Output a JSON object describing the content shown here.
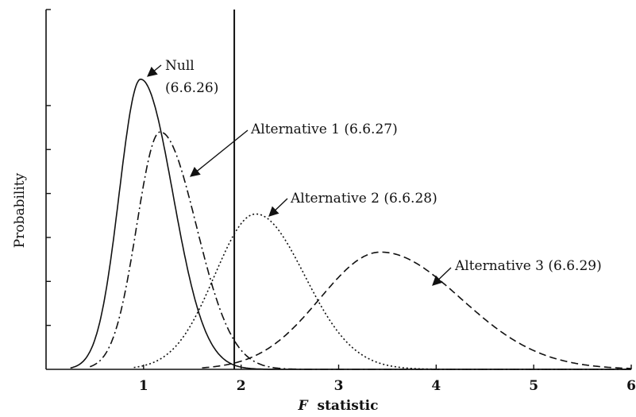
{
  "chart_data": {
    "type": "line",
    "title": "",
    "xlabel_italic": "F",
    "xlabel_rest": "statistic",
    "ylabel": "Probability",
    "xlim": [
      0,
      6
    ],
    "ylim": [
      0,
      1.0
    ],
    "x_ticks": [
      "1",
      "2",
      "3",
      "4",
      "5",
      "6"
    ],
    "x_tick_values": [
      1,
      2,
      3,
      4,
      5,
      6
    ],
    "y_tick_values": [
      0.15,
      0.3,
      0.45,
      0.6,
      0.75,
      0.9
    ],
    "critical_value": 1.93,
    "series": [
      {
        "key": "null",
        "name": "Null (6.6.26)",
        "dash": "none",
        "peak_x": 0.97,
        "peak_y": 0.99,
        "sigma_left": 0.22,
        "sigma_right": 0.33,
        "start_x": 0.25
      },
      {
        "key": "alt1",
        "name": "Alternative 1 (6.6.27)",
        "dash": "10 4 2 4",
        "peak_x": 1.17,
        "peak_y": 0.81,
        "sigma_left": 0.24,
        "sigma_right": 0.37,
        "start_x": 0.45
      },
      {
        "key": "alt2",
        "name": "Alternative 2 (6.6.28)",
        "dash": "2 3",
        "peak_x": 2.15,
        "peak_y": 0.53,
        "sigma_left": 0.42,
        "sigma_right": 0.5,
        "start_x": 0.9
      },
      {
        "key": "alt3",
        "name": "Alternative 3 (6.6.29)",
        "dash": "9 5",
        "peak_x": 3.43,
        "peak_y": 0.4,
        "sigma_left": 0.62,
        "sigma_right": 0.82,
        "start_x": 1.6
      }
    ],
    "annotations": [
      {
        "key": "null_a",
        "text": "Null"
      },
      {
        "key": "null_b",
        "text": "(6.6.26)"
      },
      {
        "key": "alt1",
        "text": "Alternative 1 (6.6.27)"
      },
      {
        "key": "alt2",
        "text": "Alternative 2 (6.6.28)"
      },
      {
        "key": "alt3",
        "text": "Alternative 3 (6.6.29)"
      }
    ]
  }
}
